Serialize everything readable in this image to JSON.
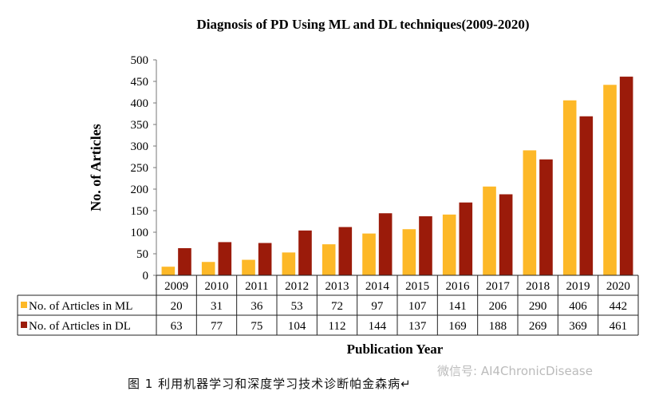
{
  "chart_data": {
    "type": "bar",
    "title": "Diagnosis of PD Using  ML and  DL techniques(2009-2020)",
    "xlabel": "Publication  Year",
    "ylabel": "No. of  Articles",
    "ylim": [
      0,
      500
    ],
    "yticks": [
      0,
      50,
      100,
      150,
      200,
      250,
      300,
      350,
      400,
      450,
      500
    ],
    "categories": [
      "2009",
      "2010",
      "2011",
      "2012",
      "2013",
      "2014",
      "2015",
      "2016",
      "2017",
      "2018",
      "2019",
      "2020"
    ],
    "series": [
      {
        "name": "No. of Articles in ML",
        "color": "#FDB827",
        "values": [
          20,
          31,
          36,
          53,
          72,
          97,
          107,
          141,
          206,
          290,
          406,
          442
        ]
      },
      {
        "name": "No. of Articles in DL",
        "color": "#9B1B0A",
        "values": [
          63,
          77,
          75,
          104,
          112,
          144,
          137,
          169,
          188,
          269,
          369,
          461
        ]
      }
    ],
    "grid": false,
    "legend": "data-table-below"
  },
  "caption": "图 1  利用机器学习和深度学习技术诊断帕金森病↵",
  "watermark": "微信号: AI4ChronicDisease"
}
